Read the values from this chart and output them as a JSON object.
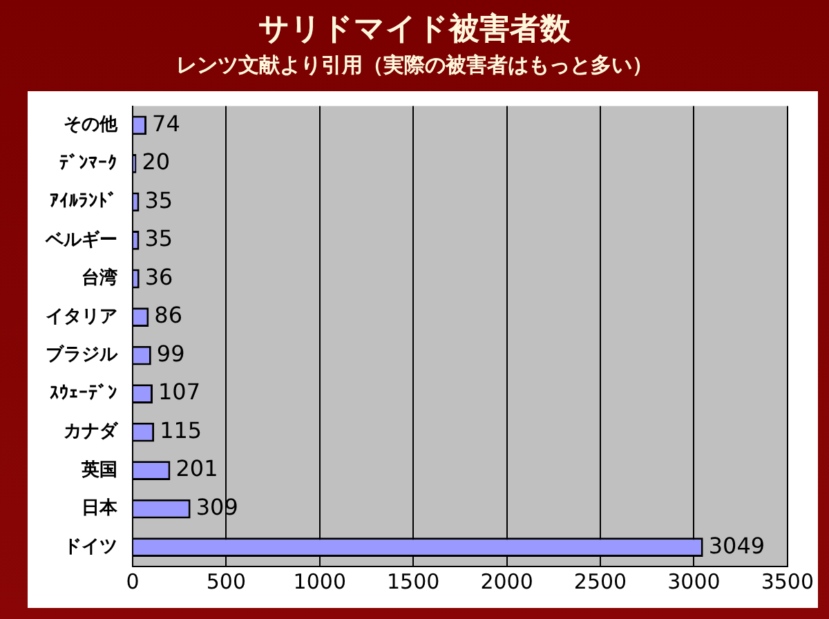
{
  "chart_data": {
    "type": "bar",
    "orientation": "horizontal",
    "title": "サリドマイド被害者数",
    "subtitle": "レンツ文献より引用（実際の被害者はもっと多い）",
    "categories": [
      "その他",
      "ﾃﾞﾝﾏｰｸ",
      "ｱｲﾙﾗﾝﾄﾞ",
      "ベルギー",
      "台湾",
      "イタリア",
      "ブラジル",
      "ｽｳｪｰﾃﾞﾝ",
      "カナダ",
      "英国",
      "日本",
      "ドイツ"
    ],
    "values": [
      74,
      20,
      35,
      35,
      36,
      86,
      99,
      107,
      115,
      201,
      309,
      3049
    ],
    "color": "#9999ff",
    "xlim": [
      0,
      3500
    ],
    "xticks": [
      0,
      500,
      1000,
      1500,
      2000,
      2500,
      3000,
      3500
    ],
    "grid": "x",
    "data_labels": true,
    "legend": false
  }
}
